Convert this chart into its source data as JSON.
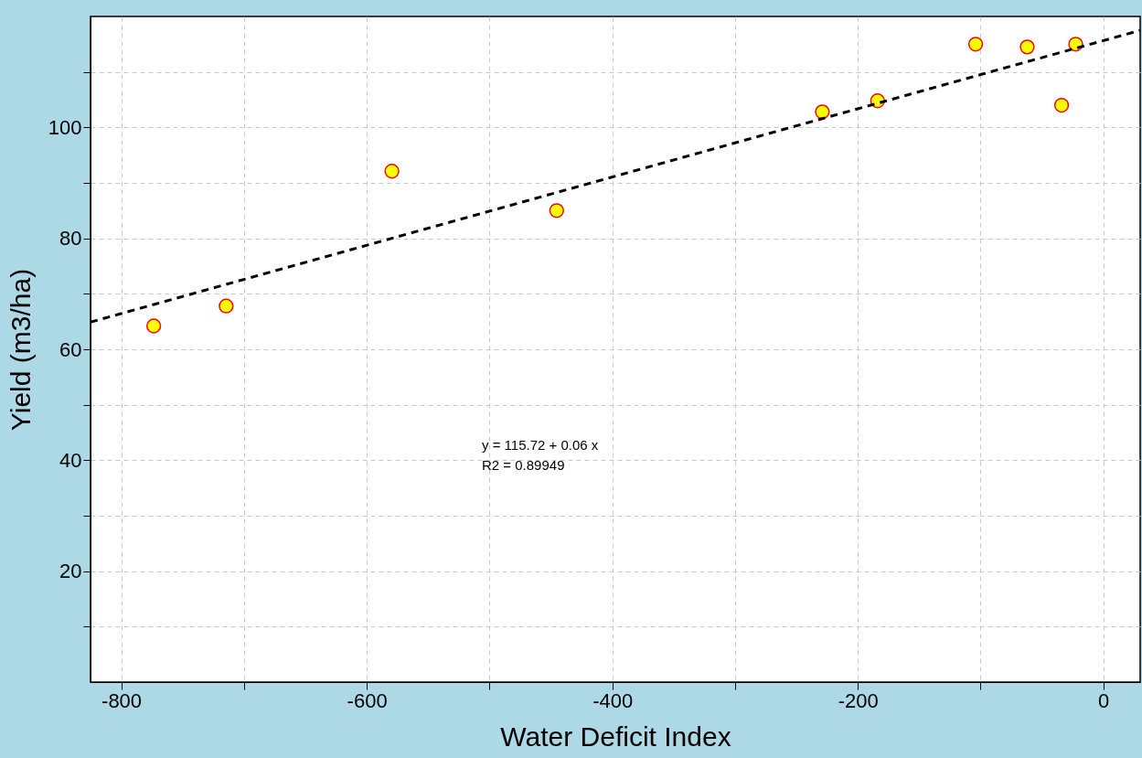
{
  "chart_data": {
    "type": "scatter",
    "xlabel": "Water Deficit Index",
    "ylabel": "Yield (m3/ha)",
    "xlim": [
      -825,
      30
    ],
    "ylim": [
      0,
      120
    ],
    "xticks": [
      -800,
      {
        "value": -700,
        "label": null
      },
      -600,
      {
        "value": -500,
        "label": null
      },
      -400,
      {
        "value": -300,
        "label": null
      },
      -200,
      {
        "value": -100,
        "label": null
      },
      0
    ],
    "yticks": [
      {
        "value": 10,
        "label": null
      },
      20,
      {
        "value": 30,
        "label": null
      },
      40,
      {
        "value": 50,
        "label": null
      },
      60,
      {
        "value": 70,
        "label": null
      },
      80,
      {
        "value": 90,
        "label": null
      },
      100,
      {
        "value": 110,
        "label": null
      }
    ],
    "grid": true,
    "series": [
      {
        "color": "#ffff00",
        "marker": "circle",
        "x": [
          -773.5,
          -714.5,
          -579.5,
          -445.3,
          -228.9,
          -183.9,
          -104,
          -62,
          -34,
          -22.5
        ],
        "values": [
          64.2,
          67.8,
          92.1,
          85.0,
          102.8,
          104.8,
          115.0,
          114.5,
          104.0,
          115.0
        ]
      },
      {
        "type": "line",
        "color": "#000000",
        "line_style": "dashed",
        "marker": "none",
        "x": [
          -825,
          30
        ],
        "values": [
          64.9,
          117.5
        ]
      }
    ],
    "annotations": [
      "y =  115.72 + 0.06 x",
      "R2 =  0.89949"
    ]
  }
}
